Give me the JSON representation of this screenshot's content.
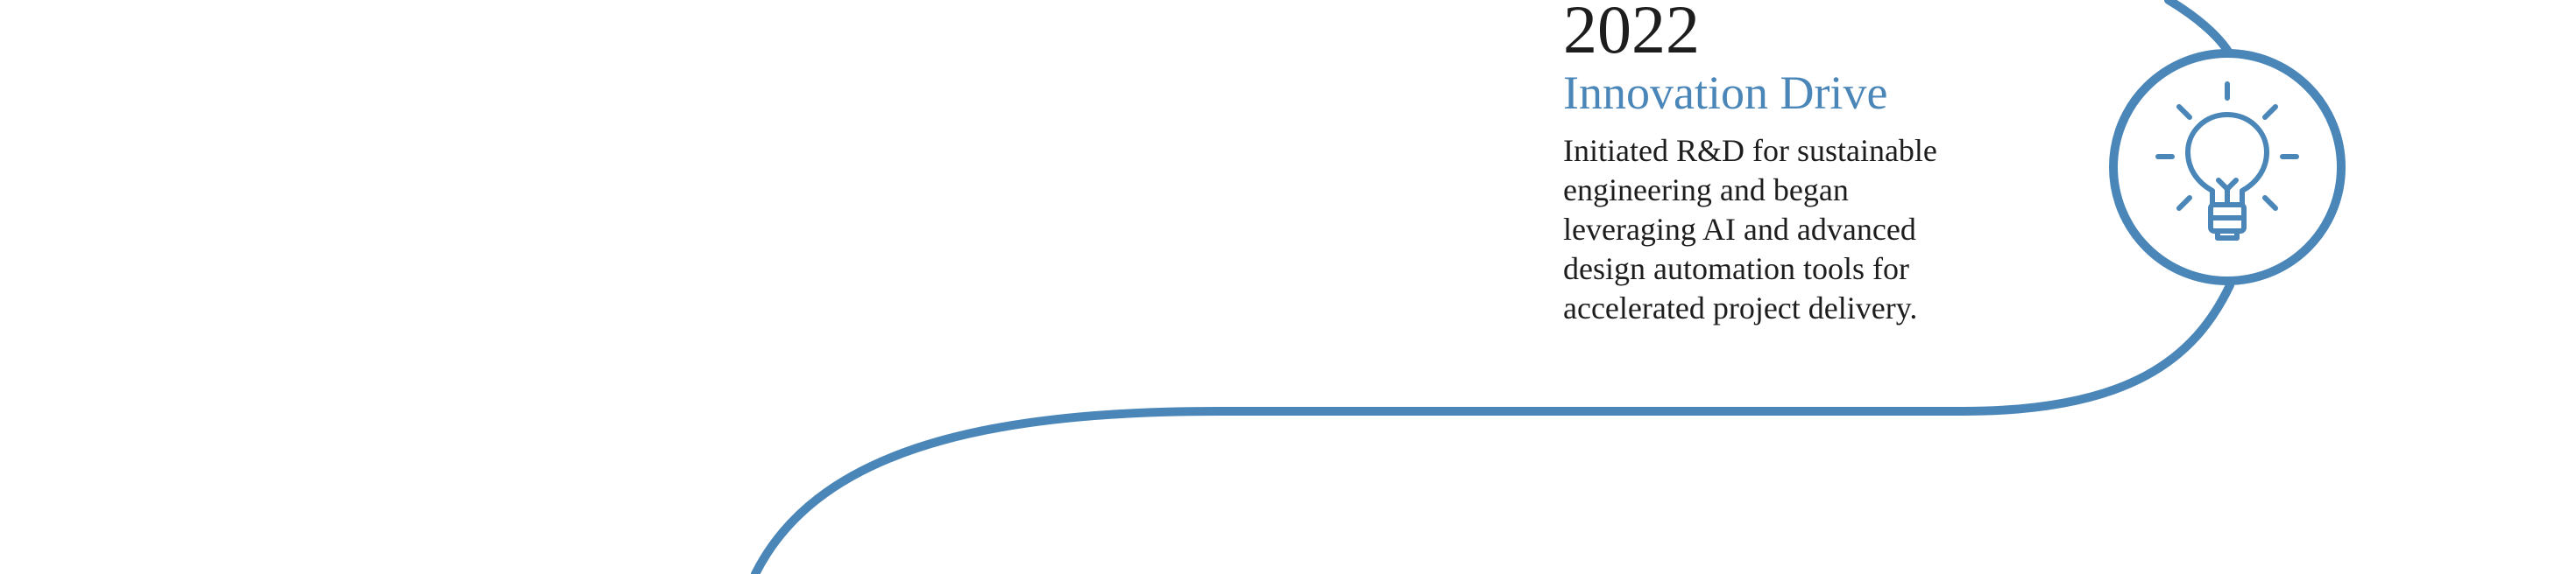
{
  "milestone": {
    "year": "2022",
    "title": "Innovation Drive",
    "description_lines": [
      "Initiated R&D for sustainable",
      "engineering and began",
      "leveraging AI and advanced",
      "design automation tools for",
      "accelerated project delivery."
    ],
    "icon": "lightbulb-icon"
  },
  "colors": {
    "accent": "#4a86b8",
    "text": "#1d1d1d",
    "background": "#ffffff"
  }
}
